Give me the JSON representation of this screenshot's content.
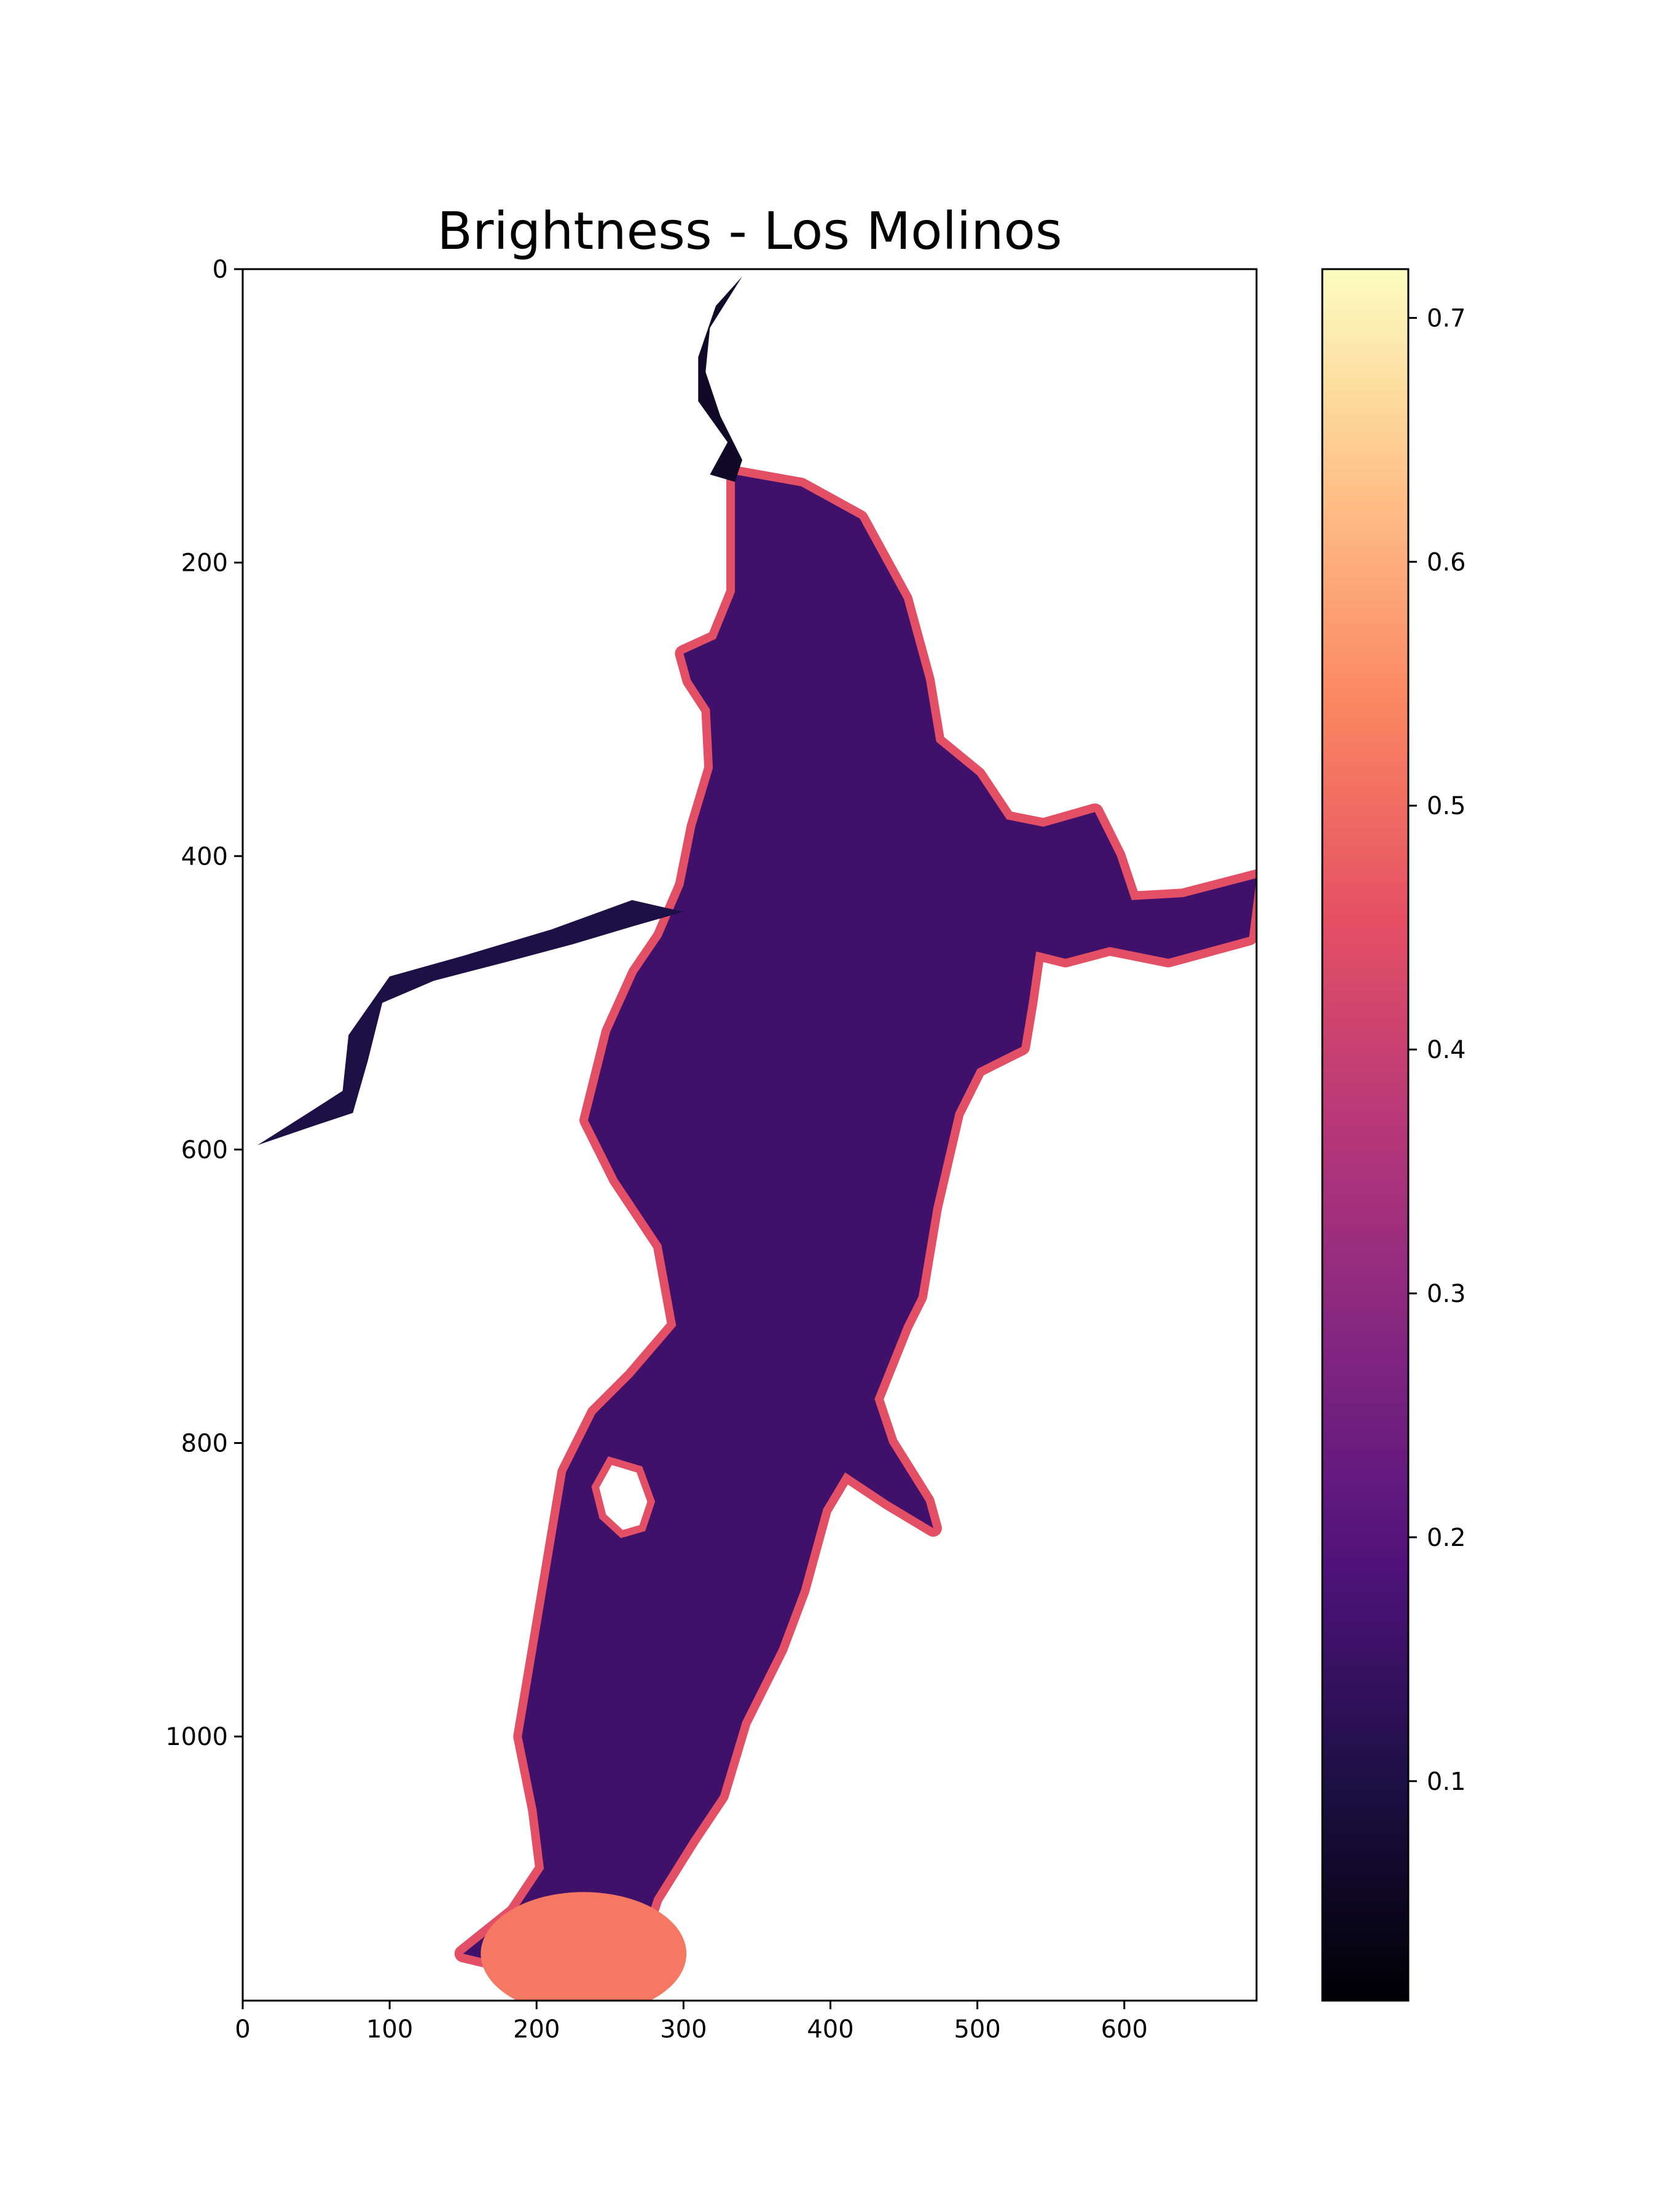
{
  "chart_data": {
    "type": "heatmap",
    "title": "Brightness - Los Molinos",
    "xlabel": "",
    "ylabel": "",
    "x_ticks": [
      0,
      100,
      200,
      300,
      400,
      500,
      600
    ],
    "y_ticks": [
      0,
      200,
      400,
      600,
      800,
      1000
    ],
    "xlim": [
      0,
      690
    ],
    "ylim": [
      1180,
      0
    ],
    "colormap": "magma",
    "colorbar": {
      "range": [
        0.01,
        0.72
      ],
      "ticks": [
        0.1,
        0.2,
        0.3,
        0.4,
        0.5,
        0.6,
        0.7
      ],
      "tick_labels": [
        "0.1",
        "0.2",
        "0.3",
        "0.4",
        "0.5",
        "0.6",
        "0.7"
      ]
    },
    "grid": false,
    "reservoir": {
      "interior_value": 0.16,
      "shore_value": 0.45,
      "inlet_value": 0.06,
      "south_shallows_value": 0.52,
      "outline": [
        [
          340,
          5
        ],
        [
          320,
          30
        ],
        [
          315,
          60
        ],
        [
          322,
          90
        ],
        [
          338,
          120
        ],
        [
          345,
          145
        ],
        [
          335,
          170
        ],
        [
          342,
          205
        ],
        [
          338,
          240
        ],
        [
          324,
          262
        ],
        [
          318,
          290
        ],
        [
          322,
          318
        ],
        [
          318,
          340
        ],
        [
          308,
          370
        ],
        [
          292,
          400
        ],
        [
          288,
          430
        ],
        [
          260,
          445
        ],
        [
          215,
          455
        ],
        [
          150,
          470
        ],
        [
          100,
          490
        ],
        [
          75,
          525
        ],
        [
          70,
          570
        ],
        [
          40,
          585
        ],
        [
          0,
          598
        ],
        [
          5,
          588
        ],
        [
          40,
          575
        ],
        [
          65,
          560
        ],
        [
          70,
          520
        ],
        [
          100,
          478
        ],
        [
          155,
          465
        ],
        [
          215,
          440
        ],
        [
          270,
          420
        ],
        [
          282,
          405
        ],
        [
          298,
          395
        ],
        [
          308,
          365
        ],
        [
          315,
          345
        ],
        [
          312,
          325
        ],
        [
          318,
          285
        ],
        [
          320,
          265
        ],
        [
          340,
          240
        ],
        [
          342,
          200
        ],
        [
          340,
          170
        ],
        [
          330,
          150
        ],
        [
          334,
          120
        ],
        [
          316,
          95
        ],
        [
          310,
          60
        ],
        [
          325,
          25
        ]
      ],
      "main_body": [
        [
          335,
          140
        ],
        [
          380,
          148
        ],
        [
          420,
          170
        ],
        [
          450,
          225
        ],
        [
          465,
          280
        ],
        [
          472,
          322
        ],
        [
          500,
          345
        ],
        [
          520,
          375
        ],
        [
          545,
          380
        ],
        [
          580,
          370
        ],
        [
          595,
          400
        ],
        [
          605,
          430
        ],
        [
          640,
          428
        ],
        [
          690,
          415
        ],
        [
          685,
          455
        ],
        [
          630,
          470
        ],
        [
          590,
          462
        ],
        [
          560,
          470
        ],
        [
          540,
          465
        ],
        [
          535,
          500
        ],
        [
          530,
          530
        ],
        [
          500,
          545
        ],
        [
          485,
          575
        ],
        [
          470,
          640
        ],
        [
          460,
          700
        ],
        [
          450,
          720
        ],
        [
          440,
          745
        ],
        [
          430,
          770
        ],
        [
          440,
          800
        ],
        [
          465,
          840
        ],
        [
          470,
          858
        ],
        [
          440,
          840
        ],
        [
          410,
          820
        ],
        [
          395,
          845
        ],
        [
          380,
          900
        ],
        [
          365,
          940
        ],
        [
          340,
          990
        ],
        [
          325,
          1040
        ],
        [
          305,
          1070
        ],
        [
          280,
          1110
        ],
        [
          270,
          1140
        ],
        [
          250,
          1165
        ],
        [
          235,
          1172
        ],
        [
          200,
          1160
        ],
        [
          150,
          1148
        ],
        [
          185,
          1120
        ],
        [
          205,
          1090
        ],
        [
          200,
          1050
        ],
        [
          190,
          1000
        ],
        [
          200,
          940
        ],
        [
          210,
          880
        ],
        [
          220,
          820
        ],
        [
          240,
          780
        ],
        [
          265,
          755
        ],
        [
          295,
          720
        ],
        [
          285,
          665
        ],
        [
          255,
          620
        ],
        [
          235,
          580
        ],
        [
          250,
          520
        ],
        [
          268,
          480
        ],
        [
          285,
          455
        ],
        [
          300,
          420
        ],
        [
          308,
          380
        ],
        [
          320,
          340
        ],
        [
          318,
          300
        ],
        [
          305,
          280
        ],
        [
          300,
          262
        ],
        [
          322,
          252
        ],
        [
          335,
          220
        ],
        [
          335,
          180
        ]
      ],
      "west_arm": [
        [
          300,
          438
        ],
        [
          265,
          448
        ],
        [
          225,
          460
        ],
        [
          180,
          472
        ],
        [
          130,
          485
        ],
        [
          95,
          500
        ],
        [
          85,
          540
        ],
        [
          75,
          575
        ],
        [
          45,
          585
        ],
        [
          10,
          597
        ],
        [
          40,
          578
        ],
        [
          68,
          560
        ],
        [
          72,
          522
        ],
        [
          100,
          482
        ],
        [
          150,
          468
        ],
        [
          210,
          450
        ],
        [
          265,
          430
        ]
      ],
      "north_inlet": [
        [
          340,
          5
        ],
        [
          318,
          40
        ],
        [
          315,
          70
        ],
        [
          325,
          100
        ],
        [
          340,
          130
        ],
        [
          335,
          145
        ],
        [
          318,
          140
        ],
        [
          330,
          118
        ],
        [
          310,
          90
        ],
        [
          310,
          60
        ],
        [
          322,
          25
        ]
      ],
      "island": [
        [
          250,
          812
        ],
        [
          270,
          818
        ],
        [
          278,
          840
        ],
        [
          272,
          858
        ],
        [
          258,
          862
        ],
        [
          245,
          850
        ],
        [
          240,
          830
        ]
      ]
    }
  }
}
